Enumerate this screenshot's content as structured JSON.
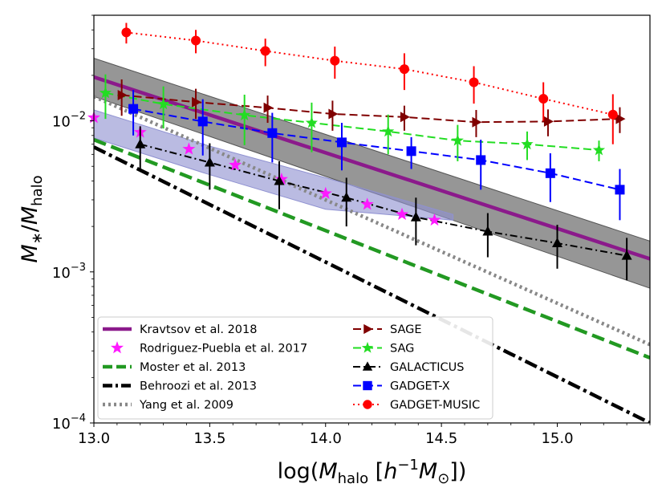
{
  "chart_data": {
    "type": "line",
    "title": "",
    "xlabel": "log(M_halo [h^-1 M_⊙])",
    "ylabel": "M_*/M_halo",
    "xlim": [
      13.0,
      15.4
    ],
    "ylim": [
      0.0001,
      0.05
    ],
    "yscale": "log",
    "x_ticks": [
      13.0,
      13.5,
      14.0,
      14.5,
      15.0
    ],
    "x_tick_labels": [
      "13.0",
      "13.5",
      "14.0",
      "14.5",
      "15.0"
    ],
    "y_ticks": [
      0.0001,
      0.001,
      0.01
    ],
    "y_tick_labels": [
      {
        "base": "10",
        "exp": "−4"
      },
      {
        "base": "10",
        "exp": "−3"
      },
      {
        "base": "10",
        "exp": "−2"
      }
    ],
    "legend_position": "lower-left",
    "bands": [
      {
        "name": "Kravtsov et al. 2018 (scatter)",
        "color": "#555555",
        "x": [
          13.0,
          15.4
        ],
        "lower": [
          0.0145,
          0.00078
        ],
        "upper": [
          0.026,
          0.0016
        ]
      },
      {
        "name": "Rodriguez-Puebla et al. 2017 (scatter)",
        "color": "#8f91d1",
        "x": [
          13.0,
          13.5,
          14.0,
          14.55
        ],
        "lower": [
          0.0077,
          0.0044,
          0.0026,
          0.0022
        ],
        "upper": [
          0.0118,
          0.0068,
          0.0042,
          0.0024
        ]
      }
    ],
    "series": [
      {
        "name": "Kravtsov et al. 2018",
        "style": "solid-thick",
        "color": "#8b1a8b",
        "x": [
          13.0,
          15.4
        ],
        "y": [
          0.0195,
          0.00122
        ]
      },
      {
        "name": "Rodriguez-Puebla et al. 2017",
        "style": "stars",
        "color": "#ff19ff",
        "x": [
          13.0,
          13.2,
          13.41,
          13.61,
          13.81,
          14.0,
          14.18,
          14.33,
          14.47
        ],
        "y": [
          0.0105,
          0.0084,
          0.0065,
          0.0051,
          0.0041,
          0.0033,
          0.0028,
          0.0024,
          0.0022
        ]
      },
      {
        "name": "Moster et al. 2013",
        "style": "dashed-thick",
        "color": "#229922",
        "x": [
          13.0,
          15.4
        ],
        "y": [
          0.0075,
          0.00027
        ]
      },
      {
        "name": "Behroozi et al. 2013",
        "style": "dashdot-thick",
        "color": "#000000",
        "x": [
          13.0,
          15.4
        ],
        "y": [
          0.0067,
          0.0001
        ]
      },
      {
        "name": "Yang et al. 2009",
        "style": "dotted-thick",
        "color": "#888888",
        "x": [
          13.0,
          15.4
        ],
        "y": [
          0.0145,
          0.00033
        ]
      },
      {
        "name": "SAGE",
        "style": "dashed-marker",
        "color": "#800000",
        "marker": "triangle-right",
        "x": [
          13.12,
          13.44,
          13.75,
          14.03,
          14.34,
          14.65,
          14.96,
          15.27
        ],
        "y": [
          0.0148,
          0.0133,
          0.0122,
          0.0111,
          0.0106,
          0.0098,
          0.0099,
          0.0103
        ],
        "err": [
          0.004,
          0.003,
          0.0025,
          0.0025,
          0.002,
          0.002,
          0.002,
          0.002
        ]
      },
      {
        "name": "SAG",
        "style": "dashed-marker",
        "color": "#22dd22",
        "marker": "star",
        "x": [
          13.05,
          13.3,
          13.65,
          13.94,
          14.27,
          14.57,
          14.87,
          15.18
        ],
        "y": [
          0.0153,
          0.0129,
          0.0109,
          0.0097,
          0.0085,
          0.0074,
          0.007,
          0.0064
        ],
        "err": [
          0.005,
          0.004,
          0.004,
          0.0035,
          0.0025,
          0.002,
          0.0015,
          0.001
        ]
      },
      {
        "name": "GALACTICUS",
        "style": "dashdot-marker",
        "color": "#000000",
        "marker": "triangle-up",
        "x": [
          13.2,
          13.5,
          13.8,
          14.09,
          14.39,
          14.7,
          15.0,
          15.3
        ],
        "y": [
          0.007,
          0.0053,
          0.004,
          0.0031,
          0.0023,
          0.00185,
          0.00155,
          0.00128
        ],
        "err": [
          0.0022,
          0.0018,
          0.0014,
          0.0011,
          0.0008,
          0.0006,
          0.0005,
          0.0004
        ]
      },
      {
        "name": "GADGET-X",
        "style": "dashed-marker",
        "color": "#0000ff",
        "marker": "square",
        "x": [
          13.17,
          13.47,
          13.77,
          14.07,
          14.37,
          14.67,
          14.97,
          15.27
        ],
        "y": [
          0.012,
          0.0099,
          0.0083,
          0.0072,
          0.0063,
          0.0055,
          0.0045,
          0.0035
        ],
        "err": [
          0.004,
          0.004,
          0.003,
          0.0025,
          0.0015,
          0.002,
          0.0016,
          0.0013
        ]
      },
      {
        "name": "GADGET-MUSIC",
        "style": "dotted-marker",
        "color": "#ff0000",
        "marker": "circle",
        "x": [
          13.14,
          13.44,
          13.74,
          14.04,
          14.34,
          14.64,
          14.94,
          15.24
        ],
        "y": [
          0.0385,
          0.034,
          0.029,
          0.025,
          0.022,
          0.018,
          0.014,
          0.011
        ],
        "err": [
          0.006,
          0.006,
          0.006,
          0.006,
          0.006,
          0.005,
          0.004,
          0.004
        ]
      }
    ]
  }
}
